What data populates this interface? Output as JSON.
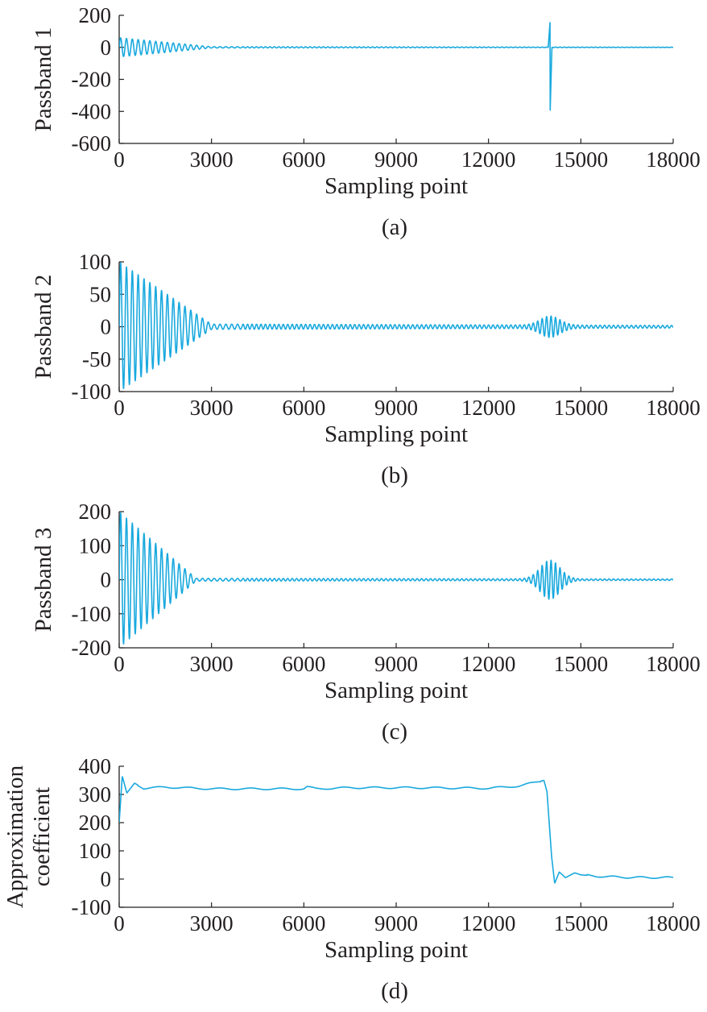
{
  "colors": {
    "series": "#19a9de",
    "axis": "#231f20"
  },
  "chart_data": [
    {
      "type": "line",
      "caption": "(a)",
      "xlabel": "Sampling point",
      "ylabel": [
        "Passband 1"
      ],
      "xlim": [
        0,
        18000
      ],
      "ylim": [
        -600,
        200
      ],
      "xticks": [
        0,
        3000,
        6000,
        9000,
        12000,
        15000,
        18000
      ],
      "yticks": [
        200,
        0,
        -200,
        -400,
        -600
      ],
      "series": [
        {
          "shape": "oscillation",
          "points": [
            [
              0,
              0
            ],
            [
              300,
              60
            ],
            [
              1000,
              30
            ],
            [
              2000,
              10
            ],
            [
              3000,
              4
            ],
            [
              5000,
              1
            ],
            [
              12000,
              0.5
            ],
            [
              13800,
              1
            ],
            [
              13950,
              20
            ],
            [
              14000,
              -420
            ],
            [
              14050,
              150
            ],
            [
              14100,
              30
            ],
            [
              14300,
              8
            ],
            [
              15000,
              2
            ],
            [
              18000,
              1
            ]
          ],
          "features": {
            "decay_envelope": [
              [
                0,
                60
              ],
              [
                3000,
                4
              ],
              [
                18000,
                1
              ]
            ],
            "spike": {
              "x": 14000,
              "min": -420,
              "max": 160
            }
          }
        }
      ]
    },
    {
      "type": "line",
      "caption": "(b)",
      "xlabel": "Sampling point",
      "ylabel": [
        "Passband 2"
      ],
      "xlim": [
        0,
        18000
      ],
      "ylim": [
        -100,
        100
      ],
      "xticks": [
        0,
        3000,
        6000,
        9000,
        12000,
        15000,
        18000
      ],
      "yticks": [
        100,
        50,
        0,
        -50,
        -100
      ],
      "series": [
        {
          "shape": "oscillation",
          "points": [
            [
              0,
              0
            ],
            [
              200,
              -100
            ],
            [
              400,
              100
            ],
            [
              800,
              60
            ],
            [
              1500,
              25
            ],
            [
              2500,
              8
            ],
            [
              3500,
              2
            ],
            [
              6000,
              1
            ],
            [
              12000,
              1
            ],
            [
              13500,
              6
            ],
            [
              14000,
              14
            ],
            [
              14500,
              6
            ],
            [
              15500,
              2
            ],
            [
              18000,
              3
            ]
          ],
          "features": {
            "decay_envelope": [
              [
                0,
                100
              ],
              [
                3000,
                4
              ],
              [
                18000,
                2
              ]
            ],
            "burst": {
              "center": 14000,
              "amplitude": 14
            }
          }
        }
      ]
    },
    {
      "type": "line",
      "caption": "(c)",
      "xlabel": "Sampling point",
      "ylabel": [
        "Passband 3"
      ],
      "xlim": [
        0,
        18000
      ],
      "ylim": [
        -200,
        200
      ],
      "xticks": [
        0,
        3000,
        6000,
        9000,
        12000,
        15000,
        18000
      ],
      "yticks": [
        200,
        100,
        0,
        -100,
        -200
      ],
      "series": [
        {
          "shape": "oscillation",
          "points": [
            [
              0,
              200
            ],
            [
              150,
              -200
            ],
            [
              300,
              155
            ],
            [
              600,
              -100
            ],
            [
              1000,
              60
            ],
            [
              1500,
              25
            ],
            [
              2500,
              4
            ],
            [
              6000,
              1
            ],
            [
              12000,
              2
            ],
            [
              13600,
              10
            ],
            [
              14000,
              55
            ],
            [
              14050,
              -55
            ],
            [
              14400,
              15
            ],
            [
              15000,
              5
            ],
            [
              18000,
              3
            ]
          ],
          "features": {
            "decay_envelope": [
              [
                0,
                200
              ],
              [
                2500,
                4
              ],
              [
                18000,
                2
              ]
            ],
            "burst": {
              "center": 14000,
              "amplitude": 55
            }
          }
        }
      ]
    },
    {
      "type": "line",
      "caption": "(d)",
      "xlabel": "Sampling point",
      "ylabel": [
        "Approximation",
        "coefficient"
      ],
      "xlim": [
        0,
        18000
      ],
      "ylim": [
        -100,
        400
      ],
      "xticks": [
        0,
        3000,
        6000,
        9000,
        12000,
        15000,
        18000
      ],
      "yticks": [
        400,
        300,
        200,
        100,
        0,
        -100
      ],
      "series": [
        {
          "points": [
            [
              0,
              200
            ],
            [
              100,
              365
            ],
            [
              250,
              305
            ],
            [
              500,
              340
            ],
            [
              800,
              322
            ],
            [
              1500,
              326
            ],
            [
              3000,
              320
            ],
            [
              6000,
              320
            ],
            [
              6100,
              327
            ],
            [
              6400,
              320
            ],
            [
              7500,
              324
            ],
            [
              9500,
              324
            ],
            [
              12000,
              322
            ],
            [
              13000,
              330
            ],
            [
              13800,
              350
            ],
            [
              13900,
              310
            ],
            [
              14050,
              80
            ],
            [
              14150,
              -15
            ],
            [
              14300,
              25
            ],
            [
              14500,
              5
            ],
            [
              14800,
              22
            ],
            [
              15000,
              15
            ],
            [
              15500,
              10
            ],
            [
              16500,
              6
            ],
            [
              18000,
              5
            ]
          ],
          "features": {
            "level_before": 320,
            "step_at": 14000,
            "level_after": 5
          }
        }
      ]
    }
  ]
}
